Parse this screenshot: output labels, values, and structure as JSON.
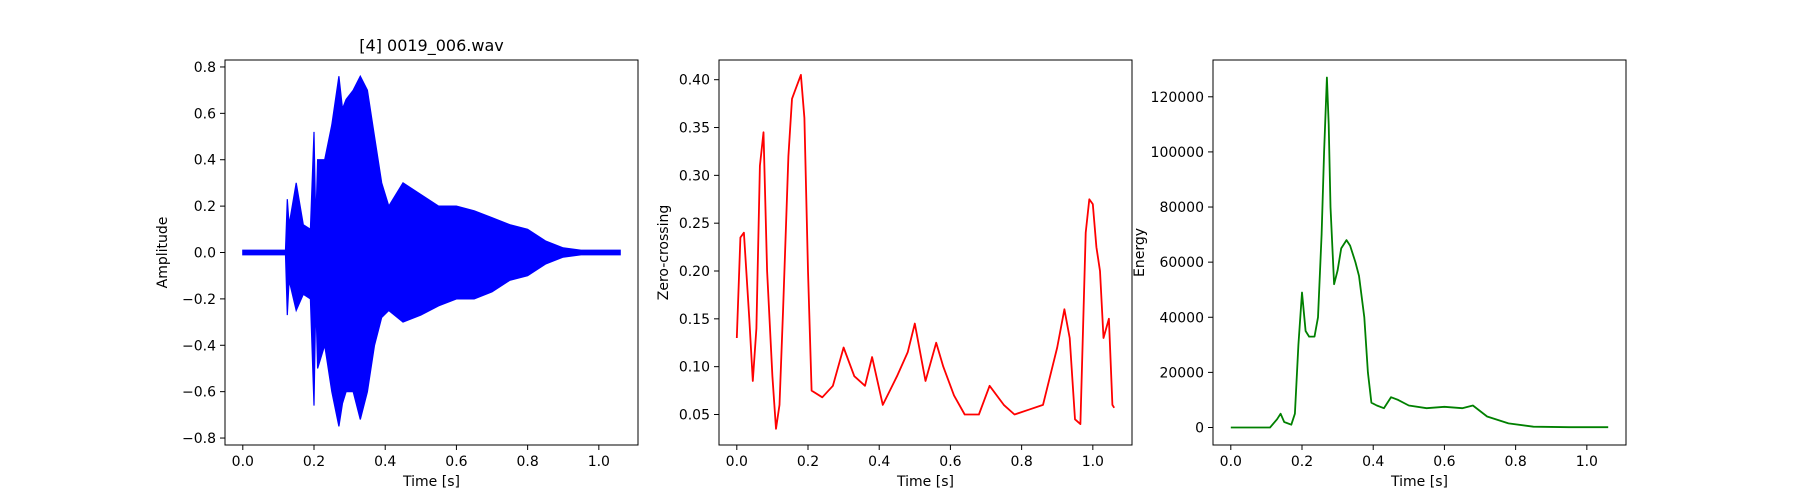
{
  "chart_data": [
    {
      "type": "line",
      "title": "[4] 0019_006.wav",
      "xlabel": "Time [s]",
      "ylabel": "Amplitude",
      "xlim": [
        -0.05,
        1.11
      ],
      "ylim": [
        -0.83,
        0.83
      ],
      "xticks": [
        "0.0",
        "0.2",
        "0.4",
        "0.6",
        "0.8",
        "1.0"
      ],
      "yticks": [
        "-0.8",
        "-0.6",
        "-0.4",
        "-0.2",
        "0.0",
        "0.2",
        "0.4",
        "0.6",
        "0.8"
      ],
      "color": "#0000ff",
      "series": [
        {
          "x": [
            0.0,
            0.12,
            0.125,
            0.13,
            0.15,
            0.17,
            0.19,
            0.2,
            0.205,
            0.21,
            0.23,
            0.25,
            0.27,
            0.28,
            0.29,
            0.31,
            0.33,
            0.35,
            0.37,
            0.39,
            0.41,
            0.45,
            0.5,
            0.55,
            0.6,
            0.65,
            0.7,
            0.75,
            0.8,
            0.85,
            0.9,
            0.95,
            1.0,
            1.06
          ],
          "upper": [
            0.01,
            0.01,
            0.23,
            0.12,
            0.3,
            0.12,
            0.1,
            0.52,
            0.12,
            0.4,
            0.4,
            0.55,
            0.76,
            0.62,
            0.66,
            0.7,
            0.76,
            0.7,
            0.5,
            0.3,
            0.2,
            0.3,
            0.25,
            0.2,
            0.2,
            0.18,
            0.15,
            0.12,
            0.1,
            0.05,
            0.02,
            0.01,
            0.01,
            0.01
          ],
          "lower": [
            -0.01,
            -0.01,
            -0.27,
            -0.12,
            -0.25,
            -0.18,
            -0.2,
            -0.66,
            -0.2,
            -0.5,
            -0.4,
            -0.6,
            -0.75,
            -0.65,
            -0.6,
            -0.6,
            -0.72,
            -0.6,
            -0.4,
            -0.28,
            -0.25,
            -0.3,
            -0.27,
            -0.23,
            -0.2,
            -0.2,
            -0.17,
            -0.12,
            -0.1,
            -0.05,
            -0.02,
            -0.01,
            -0.01,
            -0.01
          ]
        }
      ]
    },
    {
      "type": "line",
      "title": "",
      "xlabel": "Time [s]",
      "ylabel": "Zero-crossing",
      "xlim": [
        -0.05,
        1.11
      ],
      "ylim": [
        0.0181,
        0.4206
      ],
      "xticks": [
        "0.0",
        "0.2",
        "0.4",
        "0.6",
        "0.8",
        "1.0"
      ],
      "yticks": [
        "0.05",
        "0.10",
        "0.15",
        "0.20",
        "0.25",
        "0.30",
        "0.35",
        "0.40"
      ],
      "color": "#ff0000",
      "series": [
        {
          "x": [
            0.0,
            0.01,
            0.02,
            0.035,
            0.045,
            0.055,
            0.065,
            0.075,
            0.085,
            0.1,
            0.11,
            0.12,
            0.13,
            0.145,
            0.155,
            0.165,
            0.175,
            0.18,
            0.19,
            0.2,
            0.21,
            0.24,
            0.27,
            0.3,
            0.33,
            0.36,
            0.38,
            0.41,
            0.45,
            0.48,
            0.5,
            0.53,
            0.56,
            0.58,
            0.61,
            0.64,
            0.68,
            0.71,
            0.75,
            0.78,
            0.82,
            0.86,
            0.9,
            0.92,
            0.935,
            0.95,
            0.965,
            0.98,
            0.99,
            1.0,
            1.01,
            1.02,
            1.03,
            1.045,
            1.055,
            1.06
          ],
          "y": [
            0.13,
            0.235,
            0.24,
            0.15,
            0.085,
            0.14,
            0.31,
            0.345,
            0.2,
            0.09,
            0.035,
            0.06,
            0.16,
            0.32,
            0.38,
            0.39,
            0.4,
            0.405,
            0.36,
            0.2,
            0.075,
            0.068,
            0.08,
            0.12,
            0.09,
            0.08,
            0.11,
            0.06,
            0.09,
            0.115,
            0.145,
            0.085,
            0.125,
            0.1,
            0.07,
            0.05,
            0.05,
            0.08,
            0.06,
            0.05,
            0.055,
            0.06,
            0.12,
            0.16,
            0.13,
            0.045,
            0.04,
            0.24,
            0.275,
            0.27,
            0.225,
            0.2,
            0.13,
            0.15,
            0.06,
            0.057
          ]
        }
      ]
    },
    {
      "type": "line",
      "title": "",
      "xlabel": "Time [s]",
      "ylabel": "Energy",
      "xlim": [
        -0.05,
        1.11
      ],
      "ylim": [
        -6350,
        133350
      ],
      "xticks": [
        "0.0",
        "0.2",
        "0.4",
        "0.6",
        "0.8",
        "1.0"
      ],
      "yticks": [
        "0",
        "20000",
        "40000",
        "60000",
        "80000",
        "100000",
        "120000"
      ],
      "color": "#008000",
      "series": [
        {
          "x": [
            0.0,
            0.11,
            0.13,
            0.14,
            0.15,
            0.17,
            0.18,
            0.19,
            0.2,
            0.21,
            0.22,
            0.235,
            0.245,
            0.255,
            0.262,
            0.27,
            0.275,
            0.28,
            0.29,
            0.3,
            0.31,
            0.325,
            0.335,
            0.35,
            0.36,
            0.375,
            0.385,
            0.395,
            0.41,
            0.43,
            0.45,
            0.47,
            0.5,
            0.55,
            0.6,
            0.65,
            0.68,
            0.72,
            0.78,
            0.85,
            0.95,
            1.06
          ],
          "y": [
            0,
            0,
            3000,
            5000,
            2000,
            1000,
            5000,
            30000,
            49000,
            35000,
            33000,
            33000,
            40000,
            70000,
            100000,
            127000,
            110000,
            80000,
            52000,
            57000,
            65000,
            68000,
            66000,
            60000,
            55000,
            40000,
            20000,
            9000,
            8000,
            7000,
            11000,
            10000,
            8000,
            7000,
            7500,
            7000,
            8000,
            4000,
            1500,
            300,
            100,
            100
          ]
        }
      ]
    }
  ]
}
